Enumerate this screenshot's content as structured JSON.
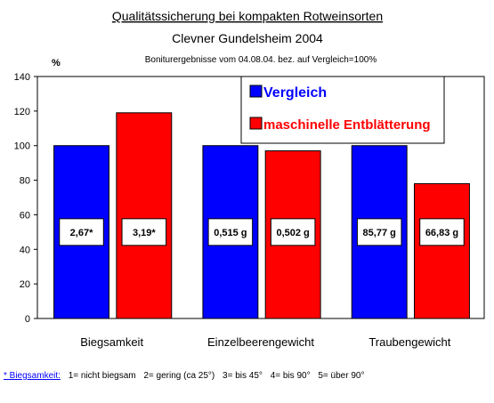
{
  "chart_data": {
    "type": "bar",
    "title": "Qualitätssicherung bei kompakten Rotweinsorten",
    "subtitle": "Clevner Gundelsheim 2004",
    "subtitle2": "Boniturergebnisse vom 04.08.04. bez. auf Vergleich=100%",
    "ylabel": "%",
    "ylim": [
      0,
      140
    ],
    "yticks": [
      0,
      20,
      40,
      60,
      80,
      100,
      120,
      140
    ],
    "categories": [
      "Biegsamkeit",
      "Einzelbeerengewicht",
      "Traubengewicht"
    ],
    "series": [
      {
        "name": "Vergleich",
        "color": "#0000ff",
        "values": [
          100,
          100,
          100
        ],
        "labels": [
          "2,67*",
          "0,515 g",
          "85,77 g"
        ]
      },
      {
        "name": "maschinelle Entblätterung",
        "color": "#ff0000",
        "values": [
          119,
          97,
          78
        ],
        "labels": [
          "3,19*",
          "0,502 g",
          "66,83 g"
        ]
      }
    ],
    "label_value": 50,
    "legend": "top-right",
    "grid": false
  },
  "footnote": {
    "key": "* Biegsamkeit:",
    "items": [
      "1= nicht biegsam",
      "2= gering (ca 25°)",
      "3= bis 45°",
      "4= bis 90°",
      "5= über 90°"
    ]
  }
}
